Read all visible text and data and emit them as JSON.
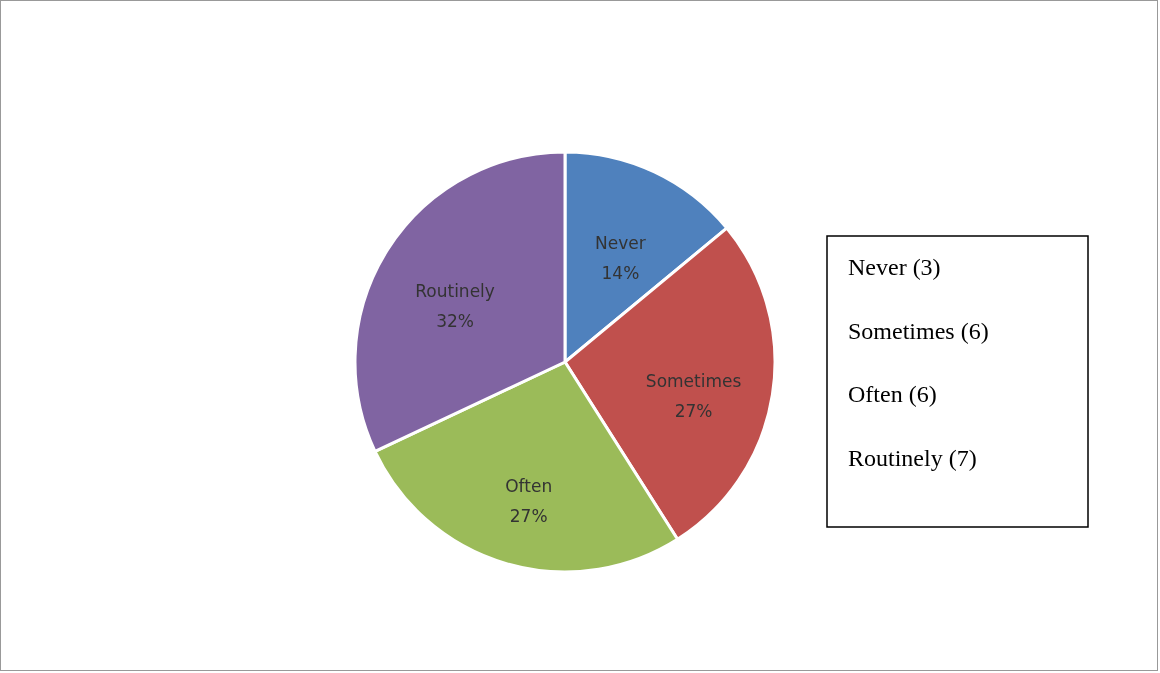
{
  "chart_data": {
    "type": "pie",
    "categories": [
      "Never",
      "Sometimes",
      "Often",
      "Routinely"
    ],
    "values": [
      14,
      27,
      27,
      32
    ],
    "value_labels": [
      "14%",
      "27%",
      "27%",
      "32%"
    ],
    "colors": [
      "#4f81bd",
      "#c0504d",
      "#9bbb59",
      "#8064a2"
    ],
    "annotations": [
      "Never (3)",
      "Sometimes (6)",
      "Often (6)",
      "Routinely (7)"
    ]
  }
}
